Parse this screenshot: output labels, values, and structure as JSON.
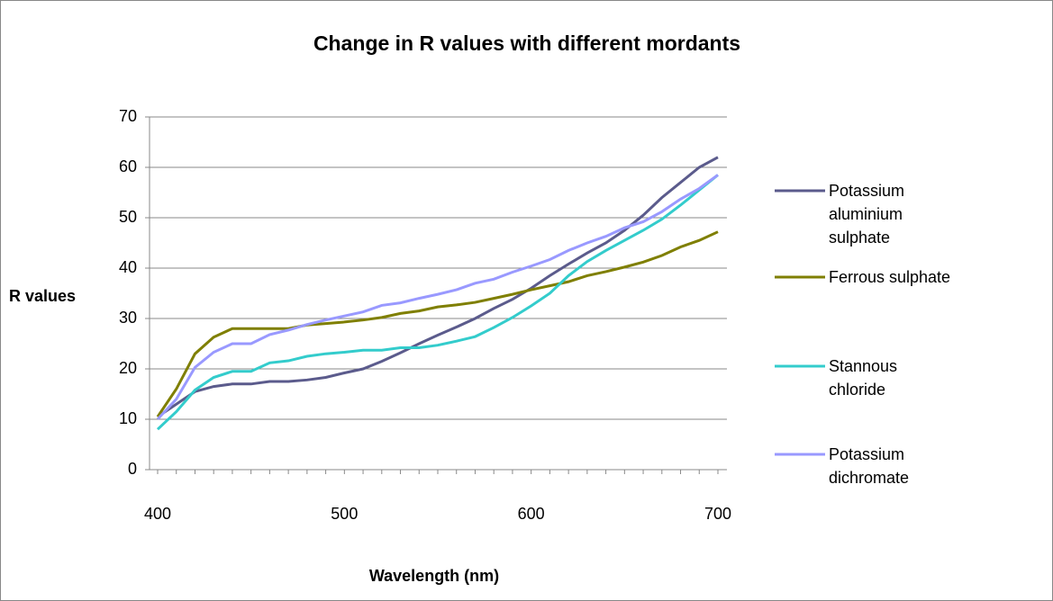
{
  "chart_data": {
    "type": "line",
    "title": "Change in R values with different mordants",
    "x_label": "Wavelength (nm)",
    "y_label": "R values",
    "x": [
      400,
      410,
      420,
      430,
      440,
      450,
      460,
      470,
      480,
      490,
      500,
      510,
      520,
      530,
      540,
      550,
      560,
      570,
      580,
      590,
      600,
      610,
      620,
      630,
      640,
      650,
      660,
      670,
      680,
      690,
      700
    ],
    "series": [
      {
        "name": "Potassium aluminium sulphate",
        "color": "#5b5b8c",
        "values": [
          10.5,
          13,
          15.5,
          16.5,
          17,
          17,
          17.5,
          17.5,
          17.8,
          18.3,
          19.2,
          20,
          21.5,
          23.2,
          25,
          26.7,
          28.3,
          30,
          32,
          33.8,
          36,
          38.5,
          40.8,
          43,
          45,
          47.5,
          50.5,
          54,
          57,
          60,
          62
        ]
      },
      {
        "name": "Ferrous sulphate",
        "color": "#7f7f00",
        "values": [
          10.5,
          16,
          23,
          26.3,
          28,
          28,
          28,
          28,
          28.7,
          29,
          29.3,
          29.7,
          30.2,
          31,
          31.5,
          32.3,
          32.7,
          33.2,
          34,
          34.8,
          35.7,
          36.5,
          37.3,
          38.5,
          39.3,
          40.2,
          41.2,
          42.5,
          44.2,
          45.5,
          47.2
        ]
      },
      {
        "name": "Stannous chloride",
        "color": "#33cccc",
        "values": [
          8,
          11.5,
          15.8,
          18.3,
          19.5,
          19.5,
          21.2,
          21.6,
          22.5,
          23,
          23.3,
          23.7,
          23.7,
          24.2,
          24.2,
          24.7,
          25.5,
          26.4,
          28.2,
          30.2,
          32.5,
          35,
          38.5,
          41.3,
          43.5,
          45.5,
          47.5,
          49.7,
          52.5,
          55.5,
          58.5
        ]
      },
      {
        "name": "Potassium dichromate",
        "color": "#9999ff",
        "values": [
          10,
          14,
          20.3,
          23.3,
          25,
          25,
          26.8,
          27.7,
          28.8,
          29.7,
          30.5,
          31.3,
          32.6,
          33.1,
          34,
          34.8,
          35.7,
          37,
          37.8,
          39.2,
          40.4,
          41.7,
          43.5,
          45,
          46.3,
          48,
          49.2,
          51.2,
          53.7,
          55.8,
          58.5
        ]
      }
    ],
    "xlim": [
      400,
      700
    ],
    "xticks": [
      400,
      500,
      600,
      700
    ],
    "ylim": [
      0,
      70
    ],
    "yticks": [
      0,
      10,
      20,
      30,
      40,
      50,
      60,
      70
    ],
    "grid": true,
    "legend": "right"
  }
}
